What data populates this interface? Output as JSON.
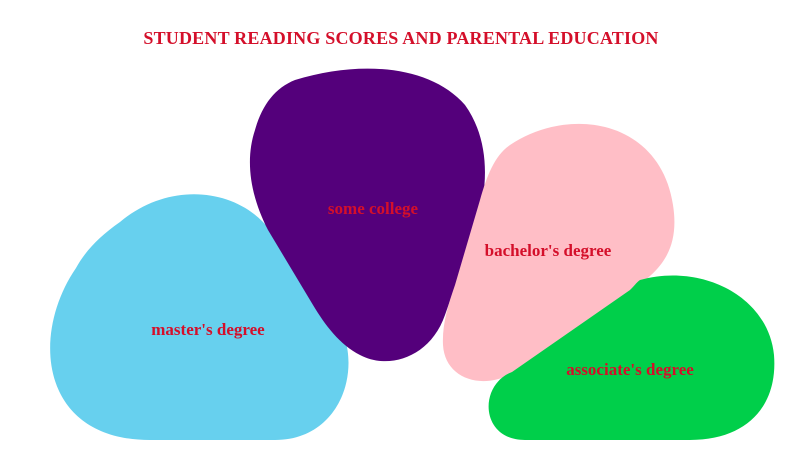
{
  "chart_data": {
    "type": "pie",
    "title": "STUDENT READING SCORES AND PARENTAL EDUCATION",
    "categories": [
      "master's degree",
      "some college",
      "bachelor's degree",
      "associate's degree"
    ],
    "colors": [
      "#67d0ee",
      "#54007b",
      "#ffbec6",
      "#00cf4a"
    ],
    "label_color": "#d40f2a",
    "legend": "none",
    "grid": false
  }
}
